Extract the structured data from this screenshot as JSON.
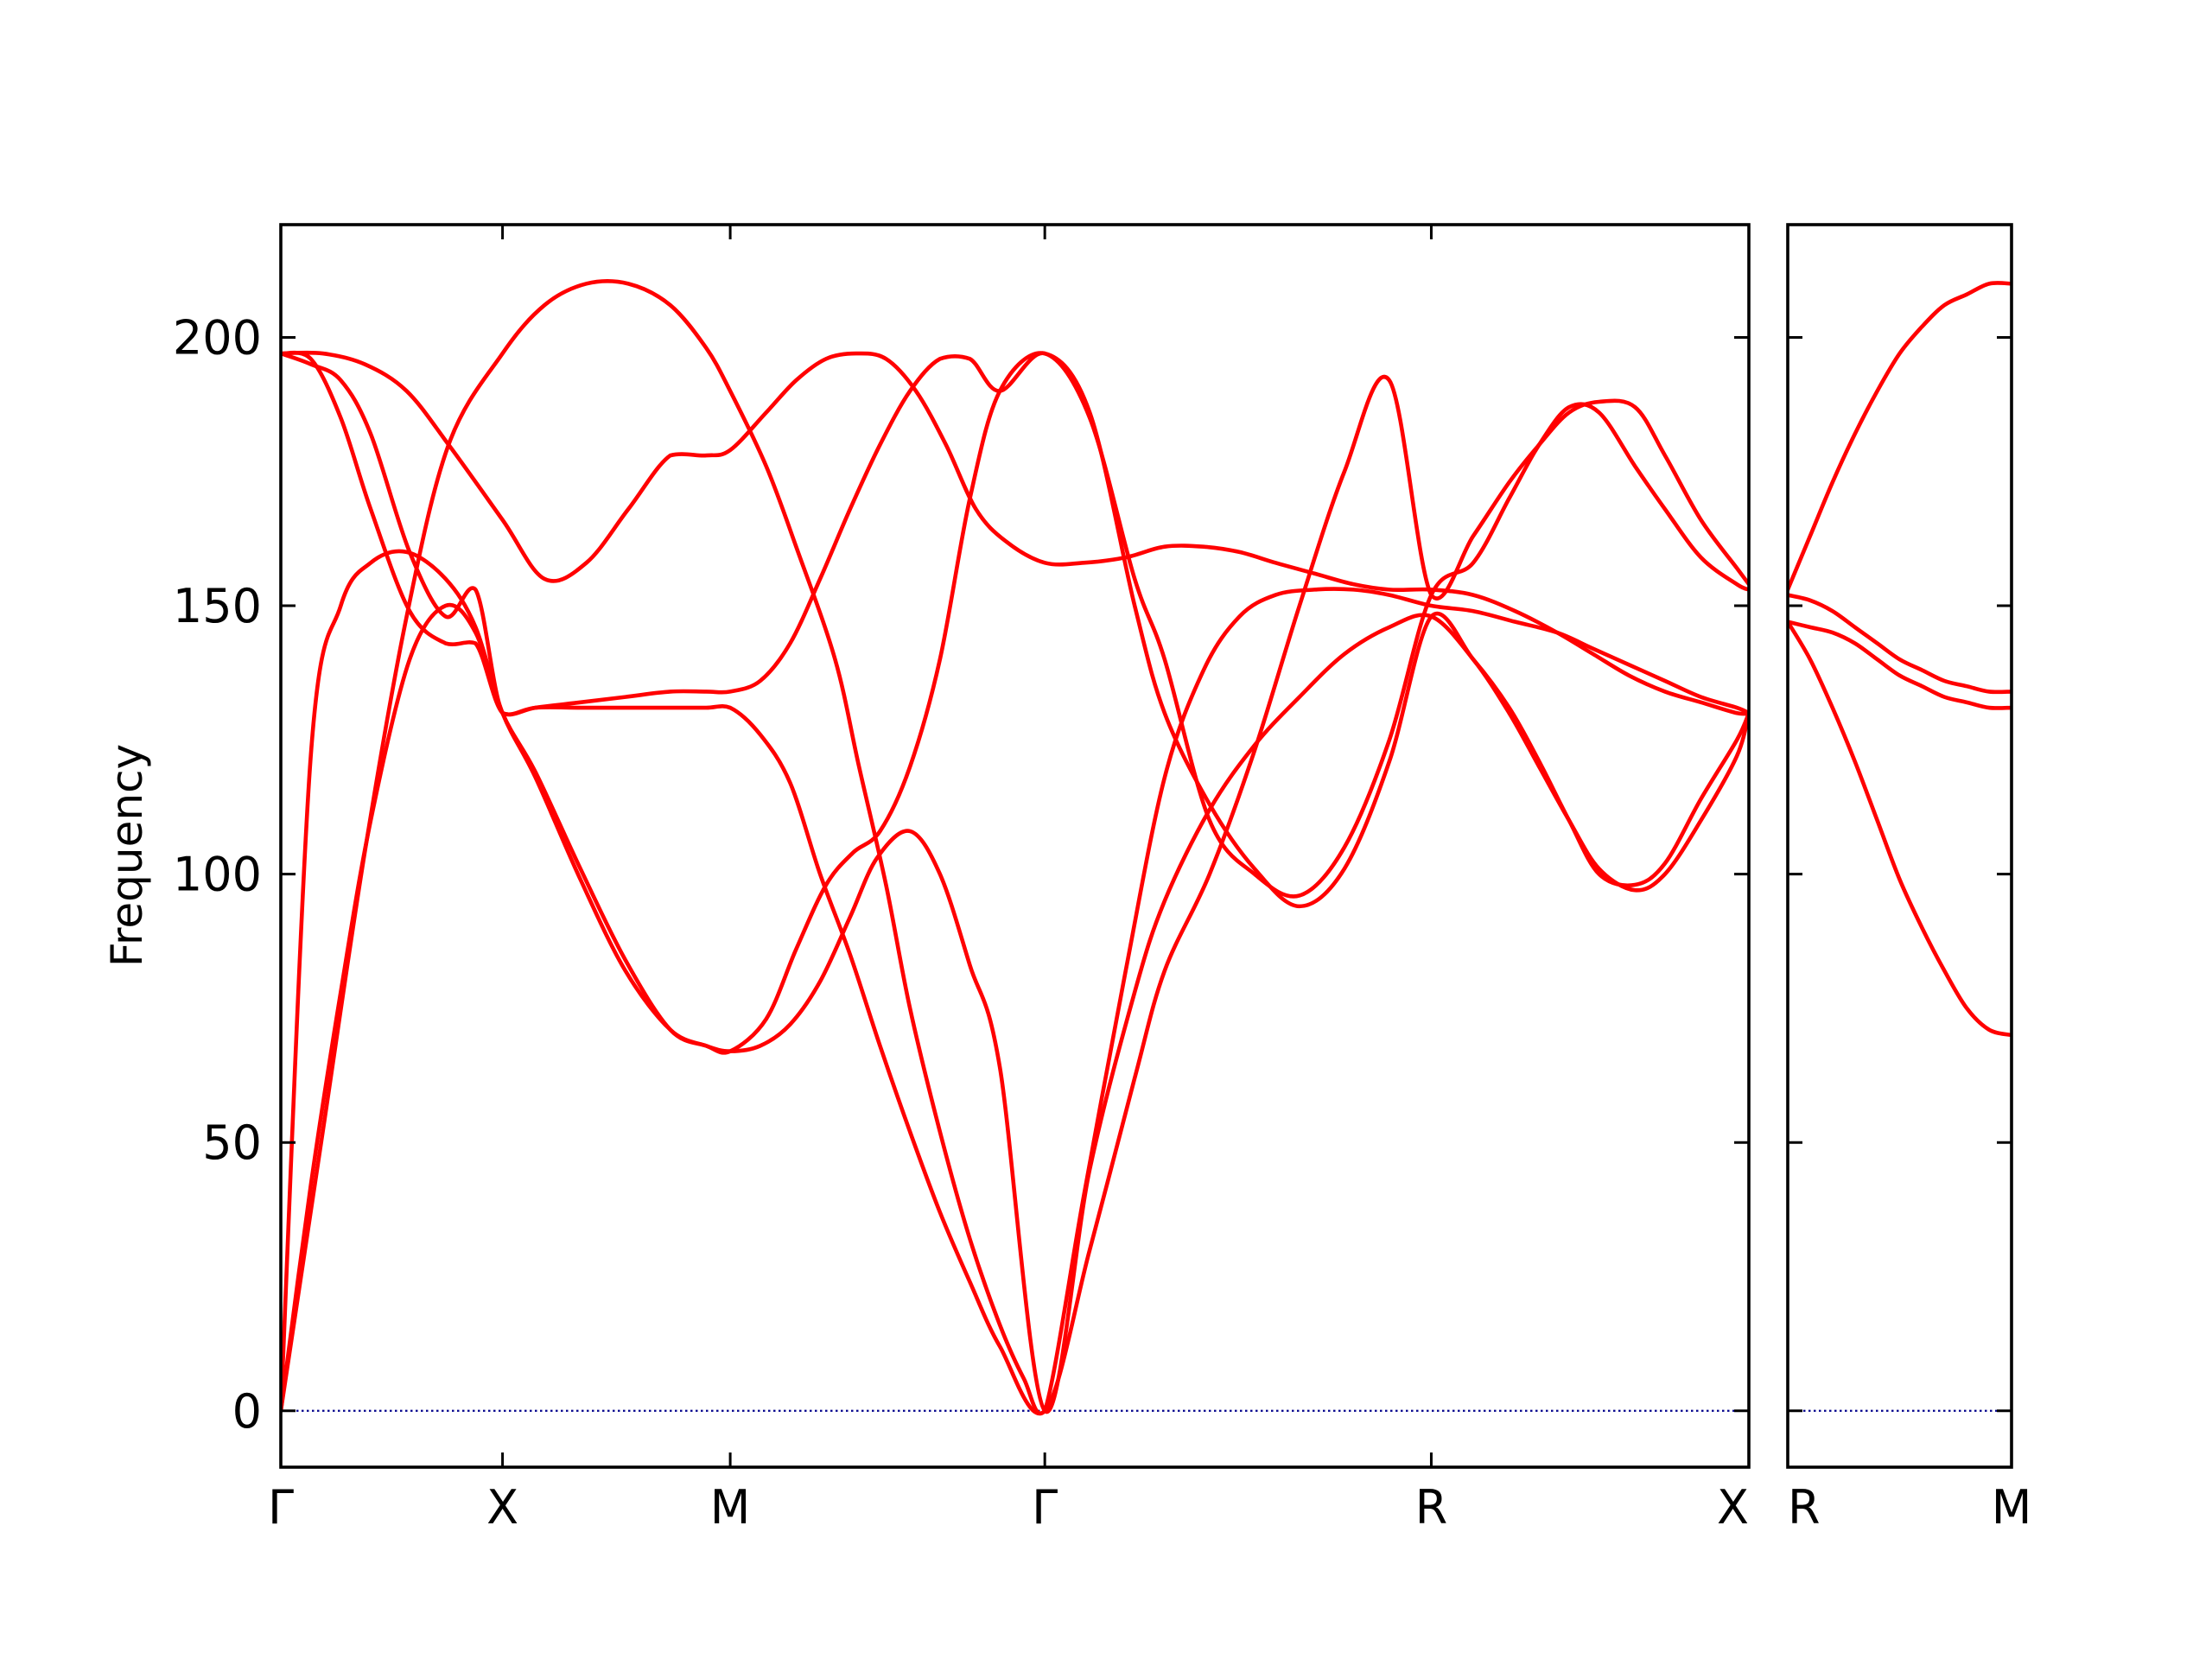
{
  "chart_data": {
    "type": "line",
    "ylabel": "Frequency",
    "ylim": [
      -10.5,
      221
    ],
    "yticks": [
      0,
      50,
      100,
      150,
      200
    ],
    "grid": false,
    "zero_line": {
      "y": 0,
      "style": "dotted",
      "color": "#00008b"
    },
    "colors": {
      "bands": "#ff0000",
      "axes": "#000000"
    },
    "panels": [
      {
        "xlim": [
          0,
          4.9
        ],
        "xticks": [
          {
            "x": 0,
            "label": "Γ"
          },
          {
            "x": 0.74,
            "label": "X"
          },
          {
            "x": 1.5,
            "label": "M"
          },
          {
            "x": 2.55,
            "label": "Γ"
          },
          {
            "x": 3.84,
            "label": "R"
          },
          {
            "x": 4.9,
            "label": "X"
          }
        ],
        "series": [
          {
            "x": [
              0,
              0.14,
              0.28,
              0.42,
              0.56,
              0.74,
              0.88,
              1.02,
              1.16,
              1.3,
              1.42,
              1.5,
              1.62,
              1.72,
              1.85,
              1.93,
              2.02,
              2.1,
              2.2,
              2.3,
              2.4,
              2.48,
              2.55,
              2.68,
              2.82,
              2.95,
              3.08,
              3.2,
              3.32,
              3.45,
              3.58,
              3.7,
              3.84,
              3.98,
              4.12,
              4.26,
              4.38,
              4.5,
              4.62,
              4.74,
              4.86,
              4.9
            ],
            "values": [
              0,
              52,
              104,
              148,
              180,
              197,
              206,
              210,
              210,
              206,
              198,
              190,
              176,
              161,
              140,
              120,
              98,
              75,
              52,
              32,
              16,
              6,
              0,
              40,
              82,
              118,
              138,
              148,
              152,
              153,
              153,
              152,
              150,
              149,
              147,
              145,
              142,
              139,
              136,
              133,
              131,
              130
            ]
          },
          {
            "x": [
              0,
              0.1,
              0.2,
              0.3,
              0.43,
              0.55,
              0.65,
              0.74,
              0.85,
              1.0,
              1.15,
              1.3,
              1.42,
              1.5,
              1.6,
              1.7,
              1.8,
              1.9,
              1.99,
              2.1,
              2.2,
              2.3,
              2.4,
              2.55,
              2.7,
              2.85,
              2.95,
              3.1,
              3.25,
              3.4,
              3.55,
              3.7,
              3.84,
              3.98,
              4.1,
              4.2,
              4.3,
              4.4,
              4.52,
              4.62,
              4.74,
              4.86,
              4.9
            ],
            "values": [
              0,
              42,
              78,
              110,
              140,
              150,
              145,
              130,
              119,
              101,
              84,
              71,
              68,
              67,
              68,
              72,
              80,
              92,
              103,
              108,
              100,
              83,
              64,
              0,
              45,
              78,
              95,
              112,
              124,
              133,
              141,
              146,
              148,
              140,
              130,
              120,
              110,
              101,
              97,
              100,
              110,
              122,
              130
            ]
          },
          {
            "x": [
              0,
              0.1,
              0.2,
              0.3,
              0.42,
              0.55,
              0.65,
              0.74,
              0.85,
              1.0,
              1.15,
              1.3,
              1.42,
              1.5,
              1.62,
              1.72,
              1.82,
              1.91,
              2.0,
              2.1,
              2.2,
              2.3,
              2.4,
              2.55,
              2.7,
              2.85,
              2.95,
              3.1,
              3.25,
              3.4,
              3.55,
              3.7,
              3.84,
              3.98,
              4.1,
              4.2,
              4.3,
              4.4,
              4.52,
              4.62,
              4.74,
              4.86,
              4.9
            ],
            "values": [
              0,
              122,
              150,
              158,
              160,
              155,
              146,
              130,
              118,
              99,
              82,
              71,
              68,
              67,
              73,
              86,
              98,
              104,
              108,
              120,
              140,
              170,
              190,
              197,
              186,
              150,
              130,
              113,
              101,
              94,
              101,
              121,
              148,
              140,
              131,
              121,
              110,
              100,
              98,
              102,
              114,
              125,
              130
            ]
          },
          {
            "x": [
              0,
              0.1,
              0.2,
              0.3,
              0.43,
              0.55,
              0.65,
              0.74,
              0.85,
              1.0,
              1.15,
              1.3,
              1.42,
              1.5,
              1.6,
              1.7,
              1.8,
              1.9,
              2.0,
              2.1,
              2.2,
              2.3,
              2.4,
              2.55,
              2.7,
              2.85,
              2.95,
              3.1,
              3.25,
              3.4,
              3.55,
              3.7,
              3.84,
              3.98,
              4.1,
              4.2,
              4.3,
              4.4,
              4.52,
              4.62,
              4.74,
              4.86,
              4.9
            ],
            "values": [
              197,
              196,
              185,
              168,
              149,
              143,
              143,
              130,
              131,
              132,
              133,
              134,
              134,
              134,
              136,
              143,
              155,
              168,
              180,
              190,
              196,
              196,
              190,
              197,
              185,
              155,
              140,
              110,
              100,
              96,
              105,
              125,
              152,
              158,
              170,
              180,
              187,
              186,
              176,
              168,
              159,
              154,
              153
            ]
          },
          {
            "x": [
              0,
              0.1,
              0.2,
              0.3,
              0.43,
              0.55,
              0.65,
              0.74,
              0.85,
              1.0,
              1.15,
              1.3,
              1.42,
              1.5,
              1.6,
              1.7,
              1.8,
              1.9,
              2.0,
              2.1,
              2.2,
              2.3,
              2.4,
              2.55,
              2.7,
              2.85,
              2.95,
              3.1,
              3.25,
              3.4,
              3.55,
              3.7,
              3.84,
              3.98,
              4.1,
              4.2,
              4.3,
              4.4,
              4.52,
              4.62,
              4.74,
              4.86,
              4.9
            ],
            "values": [
              197,
              195,
              192,
              182,
              160,
              148,
              153,
              130,
              131,
              131,
              131,
              131,
              131,
              131,
              126,
              117,
              100,
              85,
              68,
              52,
              37,
              24,
              12,
              0,
              30,
              62,
              82,
              100,
              123,
              150,
              175,
              192,
              152,
              163,
              173,
              180,
              186,
              188,
              187,
              178,
              166,
              157,
              154
            ]
          },
          {
            "x": [
              0,
              0.14,
              0.28,
              0.42,
              0.56,
              0.74,
              0.88,
              1.02,
              1.16,
              1.3,
              1.42,
              1.5,
              1.62,
              1.72,
              1.82,
              1.92,
              2.02,
              2.12,
              2.22,
              2.32,
              2.42,
              2.55,
              2.68,
              2.82,
              2.95,
              3.08,
              3.2,
              3.32,
              3.45,
              3.58,
              3.7,
              3.84,
              3.98,
              4.12,
              4.26,
              4.38,
              4.5,
              4.62,
              4.74,
              4.86,
              4.9
            ],
            "values": [
              197,
              197,
              195,
              190,
              180,
              166,
              155,
              158,
              168,
              178,
              178,
              179,
              186,
              192,
              196,
              197,
              196,
              190,
              180,
              168,
              162,
              158,
              158,
              159,
              161,
              161,
              160,
              158,
              156,
              154,
              153,
              153,
              152,
              149,
              145,
              141,
              137,
              134,
              132,
              130,
              130
            ]
          }
        ]
      },
      {
        "xlim": [
          0,
          1
        ],
        "xticks": [
          {
            "x": 0,
            "label": "R"
          },
          {
            "x": 1,
            "label": "M"
          }
        ],
        "series": [
          {
            "x": [
              0,
              0.1,
              0.2,
              0.3,
              0.4,
              0.5,
              0.6,
              0.7,
              0.8,
              0.9,
              1.0
            ],
            "values": [
              153,
              163,
              173,
              182,
              190,
              197,
              202,
              206,
              208,
              210,
              210
            ]
          },
          {
            "x": [
              0,
              0.1,
              0.2,
              0.3,
              0.4,
              0.5,
              0.6,
              0.7,
              0.8,
              0.9,
              1.0
            ],
            "values": [
              152,
              151,
              149,
              146,
              143,
              140,
              138,
              136,
              135,
              134,
              134
            ]
          },
          {
            "x": [
              0,
              0.1,
              0.2,
              0.3,
              0.4,
              0.5,
              0.6,
              0.7,
              0.8,
              0.9,
              1.0
            ],
            "values": [
              147,
              146,
              145,
              143,
              140,
              137,
              135,
              133,
              132,
              131,
              131
            ]
          },
          {
            "x": [
              0,
              0.1,
              0.2,
              0.3,
              0.4,
              0.5,
              0.6,
              0.7,
              0.8,
              0.9,
              1.0
            ],
            "values": [
              147,
              140,
              131,
              121,
              110,
              99,
              90,
              82,
              75,
              71,
              70
            ]
          }
        ]
      }
    ]
  }
}
